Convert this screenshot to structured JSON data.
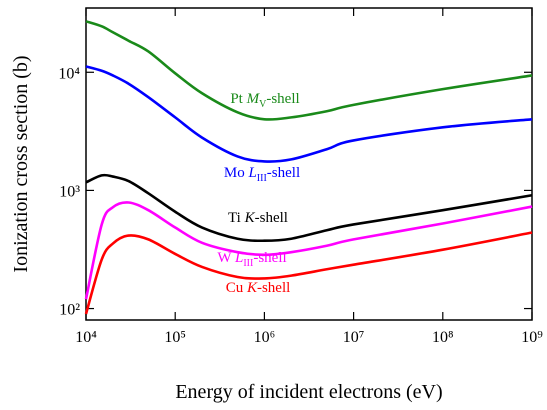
{
  "chart_data": {
    "type": "line",
    "x_label": "Energy of incident electrons (eV)",
    "y_label": "Ionization cross section (b)",
    "xlog": true,
    "ylog": true,
    "xlim": [
      10000,
      1000000000
    ],
    "ylim": [
      80,
      35000
    ],
    "xticks": [
      {
        "value": 10000,
        "label": "10⁴"
      },
      {
        "value": 100000,
        "label": "10⁵"
      },
      {
        "value": 1000000,
        "label": "10⁶"
      },
      {
        "value": 10000000,
        "label": "10⁷"
      },
      {
        "value": 100000000,
        "label": "10⁸"
      },
      {
        "value": 1000000000,
        "label": "10⁹"
      }
    ],
    "yticks": [
      {
        "value": 100,
        "label": "10²"
      },
      {
        "value": 1000,
        "label": "10³"
      },
      {
        "value": 10000,
        "label": "10⁴"
      }
    ],
    "x": [
      10000,
      15000,
      20000,
      30000,
      50000,
      100000,
      200000,
      500000,
      1000000,
      2000000,
      5000000,
      10000000,
      100000000,
      1000000000
    ],
    "series": [
      {
        "name_parts": [
          {
            "text": "Pt "
          },
          {
            "text": "M",
            "style": "italic"
          },
          {
            "text": "V",
            "style": "sub"
          },
          {
            "text": "-shell"
          }
        ],
        "color": "#1a8a1a",
        "values": [
          27000,
          24500,
          21800,
          18500,
          15000,
          9800,
          6640,
          4580,
          4000,
          4150,
          4680,
          5300,
          7200,
          9400
        ]
      },
      {
        "name_parts": [
          {
            "text": "Mo "
          },
          {
            "text": "L",
            "style": "italic"
          },
          {
            "text": "III",
            "style": "sub"
          },
          {
            "text": "-shell"
          }
        ],
        "color": "#0000ff",
        "values": [
          11200,
          10300,
          9400,
          8000,
          6150,
          4150,
          2800,
          1940,
          1760,
          1830,
          2230,
          2650,
          3420,
          4000
        ]
      },
      {
        "name_parts": [
          {
            "text": "Ti "
          },
          {
            "text": "K",
            "style": "italic"
          },
          {
            "text": "-shell"
          }
        ],
        "color": "#000000",
        "values": [
          1170,
          1340,
          1310,
          1200,
          945,
          660,
          485,
          390,
          375,
          390,
          460,
          515,
          680,
          910
        ]
      },
      {
        "name_parts": [
          {
            "text": "W "
          },
          {
            "text": "L",
            "style": "italic"
          },
          {
            "text": "III",
            "style": "sub"
          },
          {
            "text": "-shell"
          }
        ],
        "color": "#ff00ff",
        "values": [
          120,
          515,
          720,
          790,
          680,
          485,
          360,
          300,
          285,
          300,
          340,
          385,
          525,
          730
        ]
      },
      {
        "name_parts": [
          {
            "text": "Cu "
          },
          {
            "text": "K",
            "style": "italic"
          },
          {
            "text": "-shell"
          }
        ],
        "color": "#ff0000",
        "values": [
          90,
          260,
          355,
          415,
          385,
          290,
          225,
          185,
          180,
          190,
          215,
          235,
          315,
          440
        ]
      }
    ]
  }
}
